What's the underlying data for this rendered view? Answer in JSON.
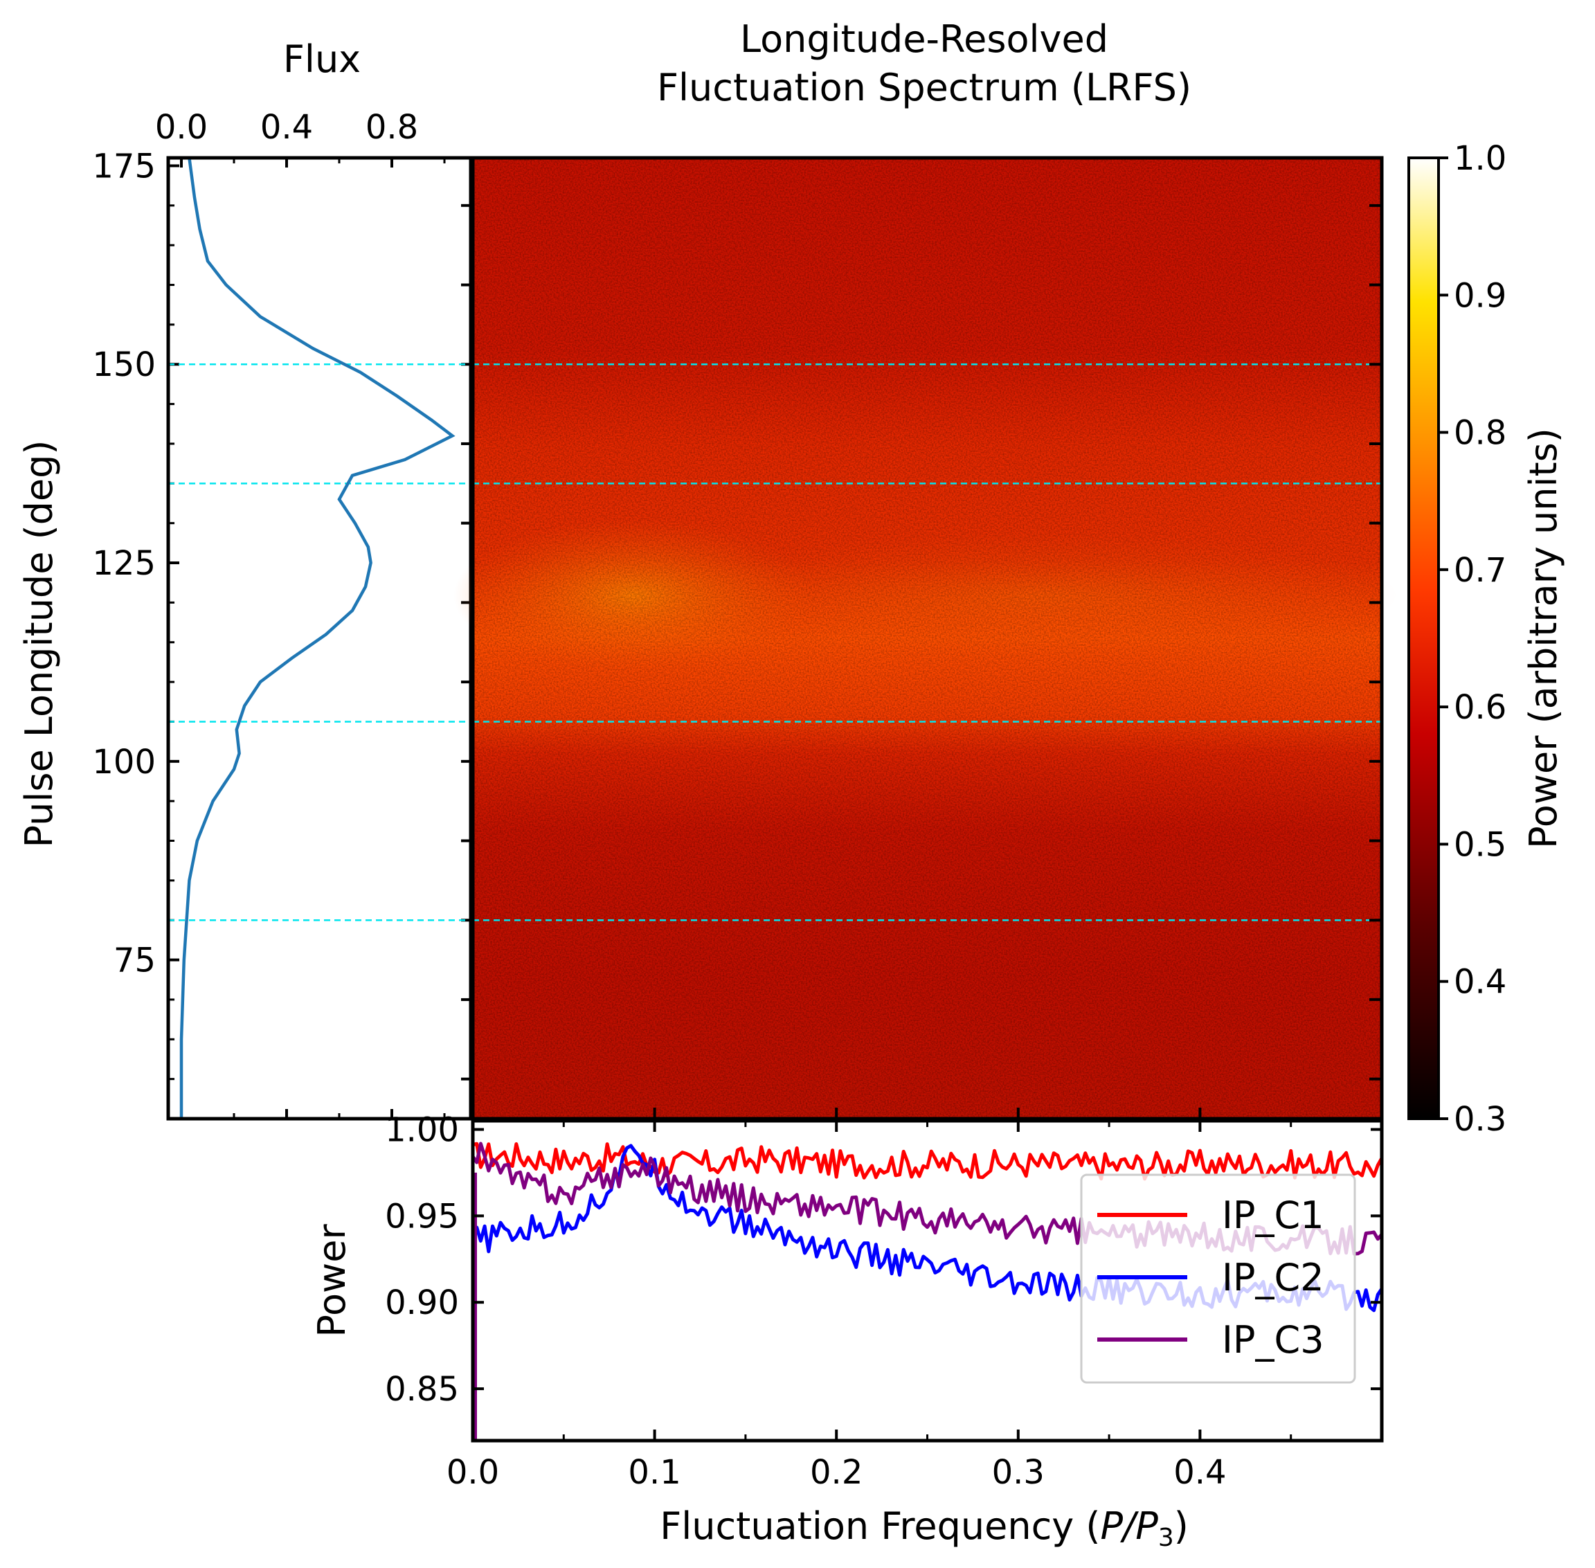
{
  "chart_data": [
    {
      "id": "profile",
      "type": "line",
      "title": "Flux",
      "ylabel": "Pulse Longitude (deg)",
      "xlim": [
        -0.05,
        1.1
      ],
      "ylim": [
        55,
        176
      ],
      "xticks": [
        "0.0",
        "0.4",
        "0.8"
      ],
      "xtick_values": [
        0.0,
        0.4,
        0.8
      ],
      "yticks": [
        "75",
        "100",
        "125",
        "150",
        "175"
      ],
      "ytick_values": [
        75,
        100,
        125,
        150,
        175
      ],
      "series": [
        {
          "name": "profile",
          "color": "#1f77b4",
          "points": [
            [
              0.0,
              55
            ],
            [
              0.0,
              65
            ],
            [
              0.01,
              75
            ],
            [
              0.02,
              80
            ],
            [
              0.03,
              85
            ],
            [
              0.06,
              90
            ],
            [
              0.12,
              95
            ],
            [
              0.2,
              99
            ],
            [
              0.22,
              101
            ],
            [
              0.21,
              104
            ],
            [
              0.24,
              107
            ],
            [
              0.3,
              110
            ],
            [
              0.42,
              113
            ],
            [
              0.55,
              116
            ],
            [
              0.65,
              119
            ],
            [
              0.7,
              122
            ],
            [
              0.72,
              125
            ],
            [
              0.71,
              127
            ],
            [
              0.66,
              130
            ],
            [
              0.6,
              133
            ],
            [
              0.65,
              136
            ],
            [
              0.85,
              138
            ],
            [
              1.03,
              141
            ],
            [
              0.95,
              143
            ],
            [
              0.82,
              146
            ],
            [
              0.68,
              149
            ],
            [
              0.5,
              152
            ],
            [
              0.3,
              156
            ],
            [
              0.17,
              160
            ],
            [
              0.1,
              163
            ],
            [
              0.07,
              167
            ],
            [
              0.05,
              171
            ],
            [
              0.03,
              176
            ]
          ]
        }
      ],
      "hlines": [
        150,
        135,
        105,
        80
      ]
    },
    {
      "id": "lrfs",
      "type": "heatmap",
      "title": "Longitude-Resolved\nFluctuation Spectrum (LRFS)",
      "title_lines": [
        "Longitude-Resolved",
        "Fluctuation Spectrum (LRFS)"
      ],
      "xlim": [
        0.0,
        0.5
      ],
      "ylim": [
        55,
        176
      ],
      "description_values": {
        "background_power": 0.48,
        "peak_power": 0.68,
        "peak_longitude": 122,
        "peak_frequency": 0.09
      },
      "hlines": [
        150,
        135,
        105,
        80
      ],
      "colorbar": {
        "label": "Power (arbitrary units)",
        "range": [
          0.3,
          1.0
        ],
        "ticks": [
          "0.3",
          "0.4",
          "0.5",
          "0.6",
          "0.7",
          "0.8",
          "0.9",
          "1.0"
        ],
        "tick_values": [
          0.3,
          0.4,
          0.5,
          0.6,
          0.7,
          0.8,
          0.9,
          1.0
        ],
        "colormap": "hot"
      }
    },
    {
      "id": "spectra",
      "type": "line",
      "xlabel_prefix": "Fluctuation Frequency (",
      "xlabel_math": "P/P",
      "xlabel_sub": "3",
      "xlabel_suffix": ")",
      "ylabel": "Power",
      "xlim": [
        0.0,
        0.5
      ],
      "ylim": [
        0.82,
        1.005
      ],
      "xticks": [
        "0.0",
        "0.1",
        "0.2",
        "0.3",
        "0.4"
      ],
      "xtick_values": [
        0.0,
        0.1,
        0.2,
        0.3,
        0.4
      ],
      "yticks": [
        "0.85",
        "0.90",
        "0.95",
        "1.00"
      ],
      "ytick_values": [
        0.85,
        0.9,
        0.95,
        1.0
      ],
      "legend_position": "right",
      "series": [
        {
          "name": "IP_C1",
          "color": "#ff0000",
          "x": [
            0.0,
            0.02,
            0.05,
            0.08,
            0.1,
            0.13,
            0.16,
            0.2,
            0.25,
            0.3,
            0.35,
            0.4,
            0.45,
            0.5
          ],
          "y": [
            0.985,
            0.985,
            0.982,
            0.984,
            0.98,
            0.98,
            0.983,
            0.98,
            0.98,
            0.98,
            0.979,
            0.98,
            0.98,
            0.978
          ]
        },
        {
          "name": "IP_C2",
          "color": "#0000ff",
          "x": [
            0.0,
            0.02,
            0.05,
            0.07,
            0.09,
            0.1,
            0.12,
            0.15,
            0.2,
            0.25,
            0.3,
            0.35,
            0.4,
            0.45,
            0.5
          ],
          "y": [
            0.935,
            0.94,
            0.945,
            0.96,
            0.99,
            0.975,
            0.955,
            0.945,
            0.93,
            0.92,
            0.91,
            0.907,
            0.905,
            0.905,
            0.903
          ]
        },
        {
          "name": "IP_C3",
          "color": "#800080",
          "x": [
            0.0,
            0.02,
            0.05,
            0.07,
            0.09,
            0.1,
            0.12,
            0.15,
            0.2,
            0.25,
            0.3,
            0.35,
            0.4,
            0.45,
            0.5
          ],
          "y": [
            0.99,
            0.972,
            0.962,
            0.97,
            0.978,
            0.975,
            0.966,
            0.96,
            0.955,
            0.948,
            0.943,
            0.94,
            0.938,
            0.937,
            0.935
          ]
        }
      ]
    }
  ]
}
